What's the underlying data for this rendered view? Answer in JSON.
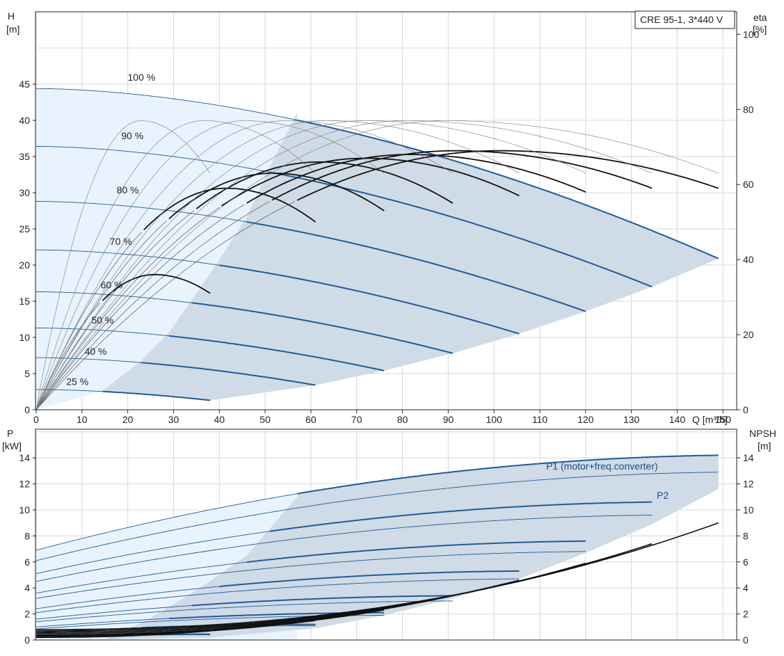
{
  "chart_data": [
    {
      "type": "line",
      "title": "CRE 95-1, 3*440 V",
      "xlabel": "Q [m³/h]",
      "ylabel_line1": "H",
      "ylabel_line2": "[m]",
      "y2label_line1": "eta",
      "y2label_line2": "[%]",
      "xlim": [
        0,
        153
      ],
      "ylim": [
        0,
        55
      ],
      "y2lim": [
        0,
        106
      ],
      "grid": true,
      "x_ticks": [
        0,
        10,
        20,
        30,
        40,
        50,
        60,
        70,
        80,
        90,
        100,
        110,
        120,
        130,
        140,
        150
      ],
      "y_ticks": [
        0,
        5,
        10,
        15,
        20,
        25,
        30,
        35,
        40,
        45
      ],
      "y2_ticks": [
        0,
        20,
        40,
        60,
        80,
        100
      ],
      "speed_labels": [
        {
          "text": "100 %",
          "q": 23,
          "h": 45.5
        },
        {
          "text": "90 %",
          "q": 21,
          "h": 37.4
        },
        {
          "text": "80 %",
          "q": 20,
          "h": 29.9
        },
        {
          "text": "70 %",
          "q": 18.5,
          "h": 22.8
        },
        {
          "text": "60 %",
          "q": 16.5,
          "h": 16.8
        },
        {
          "text": "50 %",
          "q": 14.5,
          "h": 11.9
        },
        {
          "text": "40 %",
          "q": 13,
          "h": 7.6
        },
        {
          "text": "25 %",
          "q": 9,
          "h": 3.4
        }
      ],
      "head_series": [
        {
          "speed": 100,
          "q_max": 149,
          "h0": 44.4,
          "h_max_q": 20.9,
          "q_op_min": 57
        },
        {
          "speed": 90,
          "q_max": 134.5,
          "h0": 36.4,
          "h_max_q": 17.0,
          "q_op_min": 51
        },
        {
          "speed": 80,
          "q_max": 120,
          "h0": 28.8,
          "h_max_q": 13.6,
          "q_op_min": 46
        },
        {
          "speed": 70,
          "q_max": 105.5,
          "h0": 22.1,
          "h_max_q": 10.5,
          "q_op_min": 40
        },
        {
          "speed": 60,
          "q_max": 91,
          "h0": 16.3,
          "h_max_q": 7.8,
          "q_op_min": 34
        },
        {
          "speed": 50,
          "q_max": 76,
          "h0": 11.3,
          "h_max_q": 5.4,
          "q_op_min": 29
        },
        {
          "speed": 40,
          "q_max": 61,
          "h0": 7.2,
          "h_max_q": 3.4,
          "q_op_min": 23
        },
        {
          "speed": 25,
          "q_max": 38,
          "h0": 2.8,
          "h_max_q": 1.3,
          "q_op_min": 14.5
        }
      ],
      "operating_envelope": {
        "upper_start": [
          57,
          41.1
        ],
        "lower_points": [
          [
            14.5,
            2.6
          ],
          [
            38,
            1.3
          ],
          [
            61,
            3.4
          ],
          [
            76,
            5.4
          ],
          [
            91,
            7.8
          ],
          [
            105.5,
            10.5
          ],
          [
            120,
            13.6
          ],
          [
            134.5,
            17.0
          ],
          [
            149,
            20.9
          ]
        ],
        "min_flow_line": [
          [
            14.5,
            2.6
          ],
          [
            23,
            6.8
          ],
          [
            29,
            10.7
          ],
          [
            34,
            15.2
          ],
          [
            40,
            20.7
          ],
          [
            46,
            26.7
          ],
          [
            51,
            33.5
          ],
          [
            57,
            41.1
          ]
        ]
      },
      "efficiency_series": [
        {
          "speed": 100,
          "q_max": 149,
          "eta_peak": 69,
          "eta_end": 59
        },
        {
          "speed": 90,
          "q_max": 134.5,
          "eta_peak": 69,
          "eta_end": 59
        },
        {
          "speed": 80,
          "q_max": 120,
          "eta_peak": 68,
          "eta_end": 58
        },
        {
          "speed": 70,
          "q_max": 105.5,
          "eta_peak": 67,
          "eta_end": 57
        },
        {
          "speed": 60,
          "q_max": 91,
          "eta_peak": 66,
          "eta_end": 55
        },
        {
          "speed": 50,
          "q_max": 76,
          "eta_peak": 63,
          "eta_end": 53
        },
        {
          "speed": 40,
          "q_max": 61,
          "eta_peak": 59,
          "eta_end": 50
        },
        {
          "speed": 25,
          "q_max": 38,
          "eta_peak": 36,
          "eta_end": 31
        }
      ],
      "efficiency_thin_peak": 77
    },
    {
      "type": "line",
      "xlim": [
        0,
        153
      ],
      "ylim": [
        0,
        16.2
      ],
      "y2lim": [
        0,
        16.2
      ],
      "ylabel_line1": "P",
      "ylabel_line2": "[kW]",
      "y2label_line1": "NPSH",
      "y2label_line2": "[m]",
      "y_ticks": [
        0,
        2,
        4,
        6,
        8,
        10,
        12,
        14
      ],
      "y2_ticks": [
        0,
        2,
        4,
        6,
        8,
        10,
        12,
        14
      ],
      "p1_label": "P1 (motor+freq.converter)",
      "p2_label": "P2",
      "p1_series": [
        {
          "speed": 100,
          "q_max": 149,
          "p0": 6.9,
          "p_end": 14.2,
          "q_op_min": 57
        },
        {
          "speed": 90,
          "q_max": 134.5,
          "p0": 5.1,
          "p_end": 10.6,
          "q_op_min": 51
        },
        {
          "speed": 80,
          "q_max": 120,
          "p0": 3.6,
          "p_end": 7.6,
          "q_op_min": 46
        },
        {
          "speed": 70,
          "q_max": 105.5,
          "p0": 2.4,
          "p_end": 5.3,
          "q_op_min": 40
        },
        {
          "speed": 60,
          "q_max": 91,
          "p0": 1.6,
          "p_end": 3.4,
          "q_op_min": 34
        },
        {
          "speed": 50,
          "q_max": 76,
          "p0": 1.0,
          "p_end": 2.1,
          "q_op_min": 29
        },
        {
          "speed": 40,
          "q_max": 61,
          "p0": 0.6,
          "p_end": 1.2,
          "q_op_min": 23
        },
        {
          "speed": 25,
          "q_max": 38,
          "p0": 0.25,
          "p_end": 0.45,
          "q_op_min": 14.5
        }
      ],
      "p2_series": [
        {
          "speed": 100,
          "q_max": 149,
          "p0": 6.1,
          "p_end": 12.9
        },
        {
          "speed": 90,
          "q_max": 134.5,
          "p0": 4.5,
          "p_end": 9.6
        },
        {
          "speed": 80,
          "q_max": 120,
          "p0": 3.2,
          "p_end": 6.8
        },
        {
          "speed": 70,
          "q_max": 105.5,
          "p0": 2.1,
          "p_end": 4.7
        },
        {
          "speed": 60,
          "q_max": 91,
          "p0": 1.4,
          "p_end": 3.0
        },
        {
          "speed": 50,
          "q_max": 76,
          "p0": 0.85,
          "p_end": 1.9
        },
        {
          "speed": 40,
          "q_max": 61,
          "p0": 0.5,
          "p_end": 1.1
        },
        {
          "speed": 25,
          "q_max": 38,
          "p0": 0.2,
          "p_end": 0.4
        }
      ],
      "npsh_series": [
        {
          "speed": 100,
          "q_max": 149,
          "n0": 0.8,
          "n_end": 9.0
        },
        {
          "speed": 90,
          "q_max": 134.5,
          "n0": 0.7,
          "n_end": 7.4
        },
        {
          "speed": 80,
          "q_max": 120,
          "n0": 0.6,
          "n_end": 5.9
        },
        {
          "speed": 70,
          "q_max": 105.5,
          "n0": 0.5,
          "n_end": 4.6
        },
        {
          "speed": 60,
          "q_max": 91,
          "n0": 0.4,
          "n_end": 3.4
        },
        {
          "speed": 50,
          "q_max": 76,
          "n0": 0.35,
          "n_end": 2.3
        },
        {
          "speed": 40,
          "q_max": 61,
          "n0": 0.3,
          "n_end": 1.5
        },
        {
          "speed": 25,
          "q_max": 38,
          "n0": 0.2,
          "n_end": 0.7
        }
      ],
      "operating_envelope": {
        "upper_start": [
          57,
          11.0
        ],
        "upper_end": [
          149,
          14.2
        ],
        "lower_points": [
          [
            14.5,
            0.05
          ],
          [
            38,
            0.2
          ],
          [
            61,
            0.9
          ],
          [
            76,
            1.9
          ],
          [
            91,
            3.2
          ],
          [
            105.5,
            4.7
          ],
          [
            120,
            6.7
          ],
          [
            134.5,
            8.9
          ],
          [
            149,
            11.6
          ]
        ]
      }
    }
  ],
  "colors": {
    "grid": "#d8d8d8",
    "envelope_light": "#e9f3fd",
    "envelope_dark": "#cfdbe6",
    "curve_blue": "#1f5a99",
    "curve_black": "#111111",
    "frame": "#222222"
  }
}
